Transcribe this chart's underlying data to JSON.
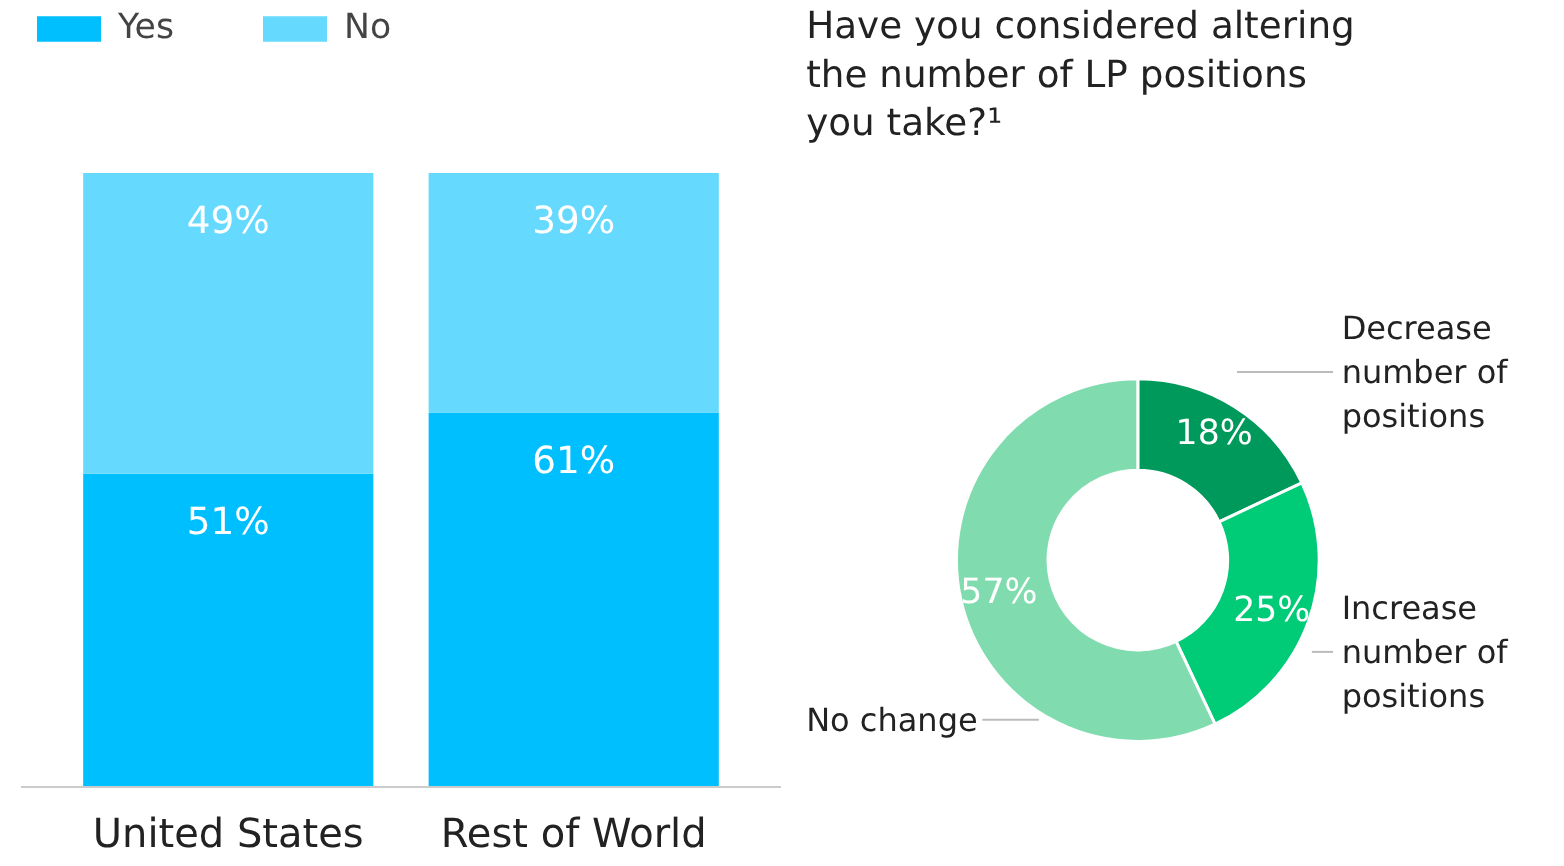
{
  "chart_data": [
    {
      "type": "bar",
      "stacked": true,
      "categories": [
        "United States",
        "Rest of World"
      ],
      "series": [
        {
          "name": "Yes",
          "color": "#00bfff",
          "values": [
            51,
            61
          ],
          "value_labels": [
            "51%",
            "61%"
          ]
        },
        {
          "name": "No",
          "color": "#66d9ff",
          "values": [
            49,
            39
          ],
          "value_labels": [
            "49%",
            "39%"
          ]
        }
      ],
      "legend": "top left",
      "grid": false
    },
    {
      "type": "donut",
      "title": "Have you considered altering the number of LP positions you take?¹",
      "categories": [
        "Decrease number of positions",
        "Increase number of positions",
        "No change"
      ],
      "values": [
        18,
        25,
        57
      ],
      "colors": [
        "#00995c",
        "#00cc78",
        "#80dcaf"
      ],
      "value_labels": [
        "18%",
        "25%",
        "57%"
      ]
    }
  ]
}
